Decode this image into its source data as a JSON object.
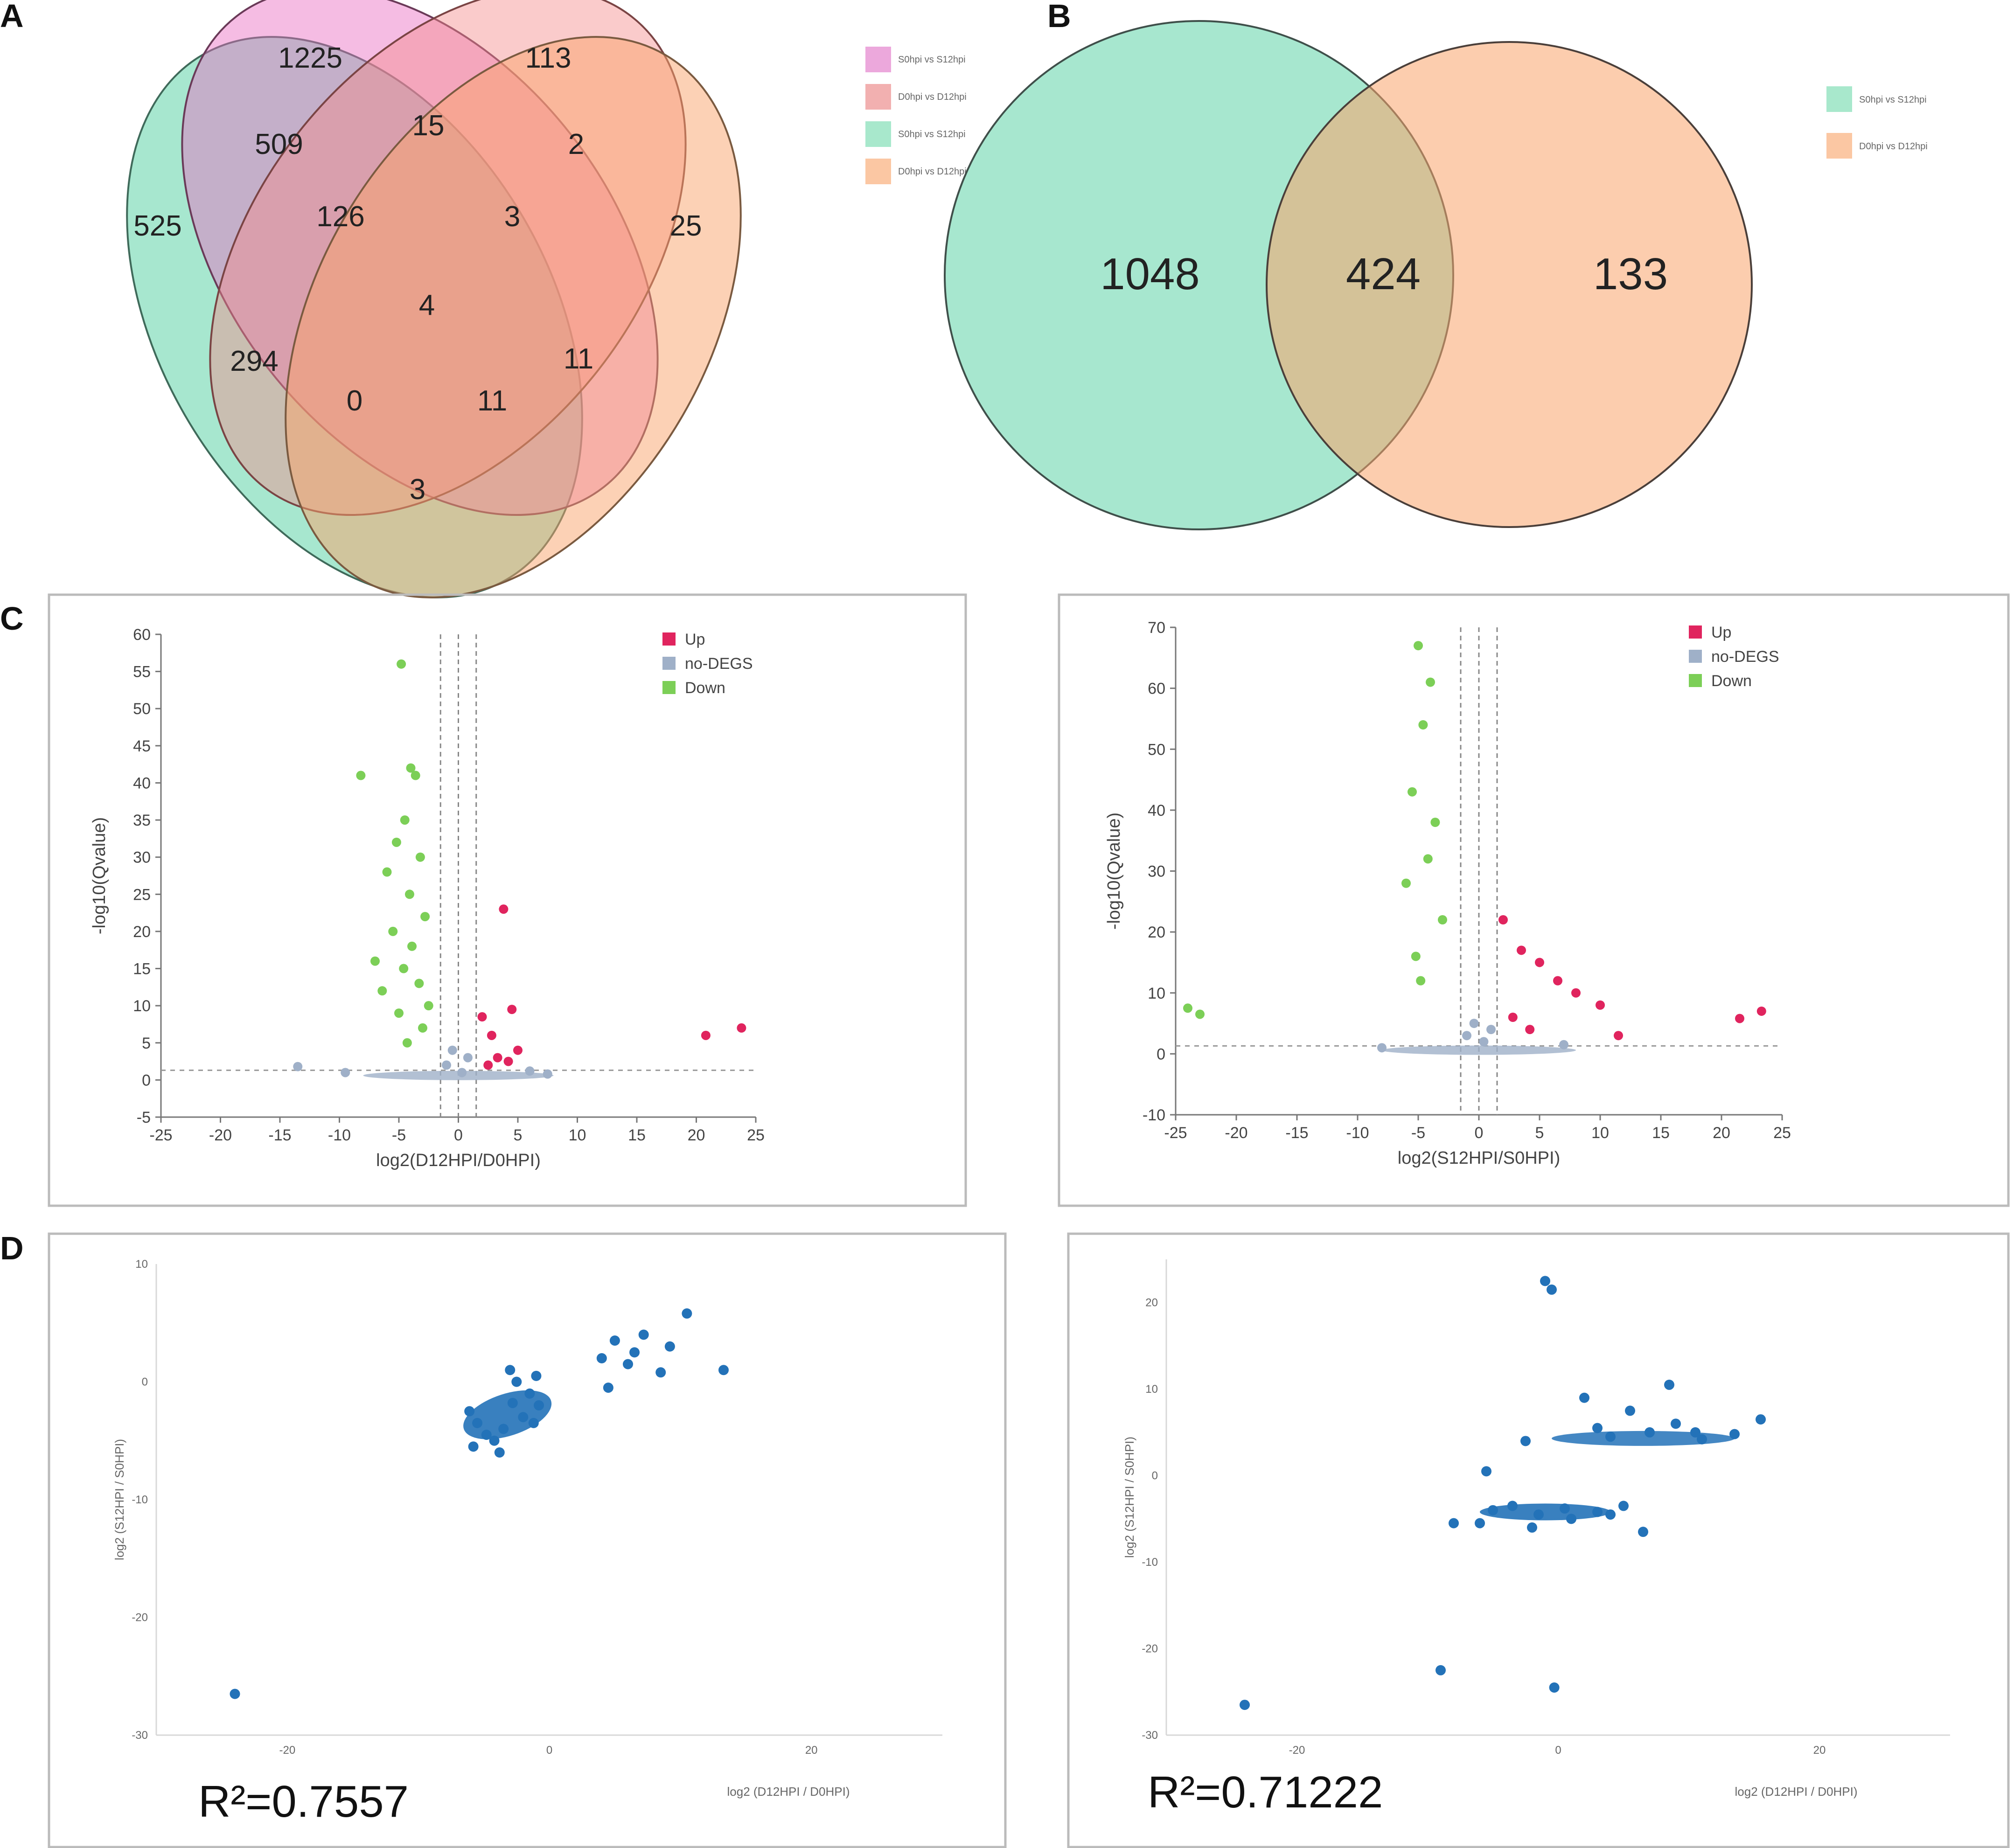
{
  "panels": {
    "A": "A",
    "B": "B",
    "C": "C",
    "D": "D"
  },
  "venn4": {
    "colors": {
      "green": "#5fd3a8",
      "pink": "#e96ac0",
      "salmon": "#f48b8b",
      "orange": "#f9a46b"
    },
    "legend": [
      "S0hpi vs S12hpi",
      "D0hpi vs D12hpi",
      "S0hpi vs S12hpi",
      "D0hpi vs D12hpi"
    ],
    "counts": {
      "c1225": "1225",
      "c113": "113",
      "c509": "509",
      "c15": "15",
      "c2": "2",
      "c525": "525",
      "c126": "126",
      "c3a": "3",
      "c25": "25",
      "c4": "4",
      "c294": "294",
      "c11a": "11",
      "c0": "0",
      "c11b": "11",
      "c3b": "3"
    }
  },
  "venn2": {
    "colors": {
      "green": "#5fd3a8",
      "orange": "#f9a46b"
    },
    "legend": [
      "S0hpi vs S12hpi",
      "D0hpi vs D12hpi"
    ],
    "left": "1048",
    "overlap": "424",
    "right": "133"
  },
  "chart_data": [
    {
      "type": "scatter",
      "id": "volcano-left",
      "title": "",
      "xlabel": "log2(D12HPI/D0HPI)",
      "ylabel": "-log10(Qvalue)",
      "xlim": [
        -25,
        25
      ],
      "ylim": [
        -5,
        60
      ],
      "xticks": [
        -25,
        -20,
        -15,
        -10,
        -5,
        0,
        5,
        10,
        15,
        20,
        25
      ],
      "yticks": [
        -5,
        0,
        5,
        10,
        15,
        20,
        25,
        30,
        35,
        40,
        45,
        50,
        55,
        60
      ],
      "legend": [
        "Up",
        "no-DEGS",
        "Down"
      ],
      "colors": {
        "up": "#e0245e",
        "none": "#9fb0c8",
        "down": "#7ccf57"
      },
      "thresholds": {
        "x": [
          -1.5,
          0,
          1.5
        ],
        "y": 1.3
      },
      "series": [
        {
          "name": "Down",
          "x": [
            -4.8,
            -4.0,
            -3.6,
            -8.2,
            -4.5,
            -5.2,
            -3.2,
            -6.0,
            -4.1,
            -2.8,
            -5.5,
            -3.9,
            -7.0,
            -4.6,
            -3.3,
            -6.4,
            -2.5,
            -5.0,
            -3.0,
            -4.3
          ],
          "y": [
            56,
            42,
            41,
            41,
            35,
            32,
            30,
            28,
            25,
            22,
            20,
            18,
            16,
            15,
            13,
            12,
            10,
            9,
            7,
            5
          ]
        },
        {
          "name": "Up",
          "x": [
            3.8,
            2.0,
            4.5,
            2.8,
            5.0,
            3.3,
            4.2,
            2.5,
            20.8,
            23.8
          ],
          "y": [
            23,
            8.5,
            9.5,
            6,
            4,
            3,
            2.5,
            2,
            6,
            7
          ]
        },
        {
          "name": "no-DEGS",
          "x": [
            -1.0,
            -0.5,
            0.3,
            0.8,
            -13.5,
            -9.5,
            6.0,
            7.5
          ],
          "y": [
            2,
            4,
            1,
            3,
            1.8,
            1.0,
            1.2,
            0.8
          ]
        }
      ]
    },
    {
      "type": "scatter",
      "id": "volcano-right",
      "title": "",
      "xlabel": "log2(S12HPI/S0HPI)",
      "ylabel": "-log10(Qvalue)",
      "xlim": [
        -25,
        25
      ],
      "ylim": [
        -10,
        70
      ],
      "xticks": [
        -25,
        -20,
        -15,
        -10,
        -5,
        0,
        5,
        10,
        15,
        20,
        25
      ],
      "yticks": [
        -10,
        0,
        10,
        20,
        30,
        40,
        50,
        60,
        70
      ],
      "legend": [
        "Up",
        "no-DEGS",
        "Down"
      ],
      "colors": {
        "up": "#e0245e",
        "none": "#9fb0c8",
        "down": "#7ccf57"
      },
      "thresholds": {
        "x": [
          -1.5,
          0,
          1.5
        ],
        "y": 1.3
      },
      "series": [
        {
          "name": "Down",
          "x": [
            -5.0,
            -4.0,
            -4.6,
            -5.5,
            -3.6,
            -4.2,
            -6.0,
            -3.0,
            -5.2,
            -4.8,
            -24.0,
            -23.0
          ],
          "y": [
            67,
            61,
            54,
            43,
            38,
            32,
            28,
            22,
            16,
            12,
            7.5,
            6.5
          ]
        },
        {
          "name": "Up",
          "x": [
            2.0,
            3.5,
            5.0,
            6.5,
            8.0,
            10.0,
            11.5,
            2.8,
            4.2,
            21.5,
            23.3
          ],
          "y": [
            22,
            17,
            15,
            12,
            10,
            8,
            3,
            6,
            4,
            5.8,
            7
          ]
        },
        {
          "name": "no-DEGS",
          "x": [
            -1.0,
            -0.4,
            0.4,
            1.0,
            -8.0,
            7.0
          ],
          "y": [
            3,
            5,
            2,
            4,
            1,
            1.5
          ]
        }
      ]
    },
    {
      "type": "scatter",
      "id": "corr-left",
      "xlabel": "log2 (D12HPI / D0HPI)",
      "ylabel": "log2 (S12HPI / S0HPI)",
      "xlim": [
        -30,
        30
      ],
      "ylim": [
        -30,
        10
      ],
      "xticks": [
        -20,
        0,
        20
      ],
      "yticks": [
        10,
        0,
        -10,
        -20,
        -30
      ],
      "annotation": "R²=0.7557",
      "color": "#2372b8",
      "x": [
        -6.1,
        -5.8,
        -3.0,
        -5.5,
        -4.2,
        -2.5,
        -1.5,
        -0.8,
        -1.2,
        -3.5,
        -2.0,
        -1.0,
        -2.8,
        -3.8,
        -4.8,
        4.0,
        5.0,
        6.0,
        7.2,
        8.5,
        9.2,
        10.5,
        6.5,
        13.3,
        4.5,
        -24.0
      ],
      "y": [
        -2.5,
        -5.5,
        1.0,
        -3.5,
        -5.0,
        0.0,
        -1.0,
        -2.0,
        -3.5,
        -4.0,
        -3.0,
        0.5,
        -1.8,
        -6.0,
        -4.5,
        2.0,
        3.5,
        1.5,
        4.0,
        0.8,
        3.0,
        5.8,
        2.5,
        1.0,
        -0.5,
        -26.5
      ]
    },
    {
      "type": "scatter",
      "id": "corr-right",
      "xlabel": "log2 (D12HPI / D0HPI)",
      "ylabel": "log2 (S12HPI / S0HPI)",
      "xlim": [
        -30,
        30
      ],
      "ylim": [
        -30,
        25
      ],
      "xticks": [
        -20,
        0,
        20
      ],
      "yticks": [
        20,
        10,
        0,
        -10,
        -20,
        -30
      ],
      "annotation": "R²=0.71222",
      "color": "#2372b8",
      "x": [
        -8.0,
        -5.0,
        -3.5,
        -1.5,
        0.5,
        3.0,
        5.0,
        -2.0,
        1.0,
        4.0,
        6.5,
        -0.5,
        -5.5,
        -24.0,
        -6.0,
        -9.0,
        -1.0,
        -0.3,
        3.0,
        5.5,
        8.5,
        10.5,
        11.0,
        13.5,
        15.5,
        9.0,
        4.0,
        2.0,
        7.0,
        -2.5
      ],
      "y": [
        -5.5,
        -4.0,
        -3.5,
        -4.5,
        -3.8,
        -4.2,
        -3.5,
        -6.0,
        -5.0,
        -4.5,
        -6.5,
        21.5,
        0.5,
        -26.5,
        -5.5,
        -22.5,
        22.5,
        -24.5,
        5.5,
        7.5,
        10.5,
        5.0,
        4.2,
        4.8,
        6.5,
        6.0,
        4.5,
        9.0,
        5.0,
        4.0
      ]
    }
  ]
}
